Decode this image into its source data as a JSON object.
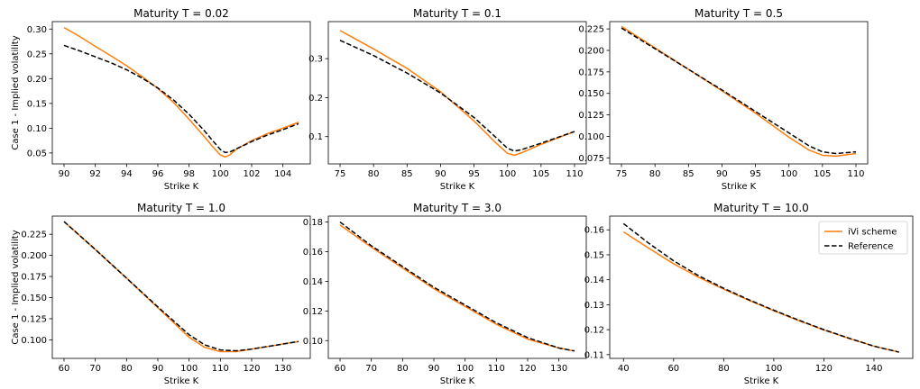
{
  "colors": {
    "ivi": "#ff7f0e",
    "reference": "#000000",
    "axis": "#000000",
    "background": "#ffffff"
  },
  "chart_data": [
    {
      "type": "line",
      "title": "Maturity  T = 0.02",
      "xlabel": "Strike K",
      "ylabel": "Case 1 - Implied volatility",
      "xlim": [
        89.25,
        105.75
      ],
      "ylim": [
        0.028,
        0.315
      ],
      "xticks": [
        90,
        92,
        94,
        96,
        98,
        100,
        102,
        104
      ],
      "yticks": [
        0.05,
        0.1,
        0.15,
        0.2,
        0.25,
        0.3
      ],
      "ytick_labels": [
        "0.05",
        "0.10",
        "0.15",
        "0.20",
        "0.25",
        "0.30"
      ],
      "series": [
        {
          "name": "iVi scheme",
          "style": "solid",
          "x": [
            90,
            91,
            92,
            93,
            94,
            95,
            96,
            97,
            98,
            99,
            99.5,
            100,
            100.3,
            100.6,
            101,
            102,
            103,
            104,
            105
          ],
          "y": [
            0.303,
            0.285,
            0.265,
            0.246,
            0.226,
            0.204,
            0.18,
            0.152,
            0.118,
            0.082,
            0.063,
            0.046,
            0.042,
            0.046,
            0.057,
            0.075,
            0.089,
            0.1,
            0.112
          ]
        },
        {
          "name": "Reference",
          "style": "dashed",
          "x": [
            90,
            91,
            92,
            93,
            94,
            95,
            96,
            97,
            98,
            99,
            99.5,
            100,
            100.3,
            100.6,
            101,
            102,
            103,
            104,
            105
          ],
          "y": [
            0.267,
            0.256,
            0.244,
            0.232,
            0.218,
            0.201,
            0.181,
            0.157,
            0.128,
            0.094,
            0.075,
            0.057,
            0.051,
            0.052,
            0.058,
            0.073,
            0.086,
            0.097,
            0.109
          ]
        }
      ]
    },
    {
      "type": "line",
      "title": "Maturity  T = 0.1",
      "xlabel": "Strike K",
      "ylabel": "",
      "xlim": [
        73.25,
        111.75
      ],
      "ylim": [
        0.03,
        0.395
      ],
      "xticks": [
        75,
        80,
        85,
        90,
        95,
        100,
        105,
        110
      ],
      "yticks": [
        0.1,
        0.2,
        0.3
      ],
      "ytick_labels": [
        "0.1",
        "0.2",
        "0.3"
      ],
      "series": [
        {
          "name": "iVi scheme",
          "style": "solid",
          "x": [
            75,
            80,
            85,
            90,
            95,
            98,
            100,
            101,
            102,
            105,
            110
          ],
          "y": [
            0.372,
            0.325,
            0.275,
            0.215,
            0.14,
            0.088,
            0.057,
            0.052,
            0.058,
            0.08,
            0.113
          ]
        },
        {
          "name": "Reference",
          "style": "dashed",
          "x": [
            75,
            80,
            85,
            90,
            95,
            98,
            100,
            101,
            102,
            105,
            110
          ],
          "y": [
            0.347,
            0.308,
            0.263,
            0.212,
            0.149,
            0.102,
            0.07,
            0.063,
            0.066,
            0.083,
            0.113
          ]
        }
      ]
    },
    {
      "type": "line",
      "title": "Maturity  T = 0.5",
      "xlabel": "Strike K",
      "ylabel": "",
      "xlim": [
        73.25,
        111.75
      ],
      "ylim": [
        0.068,
        0.2335
      ],
      "xticks": [
        75,
        80,
        85,
        90,
        95,
        100,
        105,
        110
      ],
      "yticks": [
        0.075,
        0.1,
        0.125,
        0.15,
        0.175,
        0.2,
        0.225
      ],
      "ytick_labels": [
        "0.075",
        "0.100",
        "0.125",
        "0.150",
        "0.175",
        "0.200",
        "0.225"
      ],
      "series": [
        {
          "name": "iVi scheme",
          "style": "solid",
          "x": [
            75,
            80,
            85,
            90,
            95,
            100,
            103,
            105,
            107,
            110
          ],
          "y": [
            0.228,
            0.203,
            0.178,
            0.153,
            0.127,
            0.099,
            0.084,
            0.078,
            0.077,
            0.08
          ]
        },
        {
          "name": "Reference",
          "style": "dashed",
          "x": [
            75,
            80,
            85,
            90,
            95,
            100,
            103,
            105,
            107,
            110
          ],
          "y": [
            0.226,
            0.202,
            0.178,
            0.154,
            0.129,
            0.104,
            0.089,
            0.082,
            0.08,
            0.082
          ]
        }
      ]
    },
    {
      "type": "line",
      "title": "Maturity  T = 1.0",
      "xlabel": "Strike K",
      "ylabel": "Case 1 - Implied volatility",
      "xlim": [
        56.25,
        138.75
      ],
      "ylim": [
        0.078,
        0.2465
      ],
      "xticks": [
        60,
        70,
        80,
        90,
        100,
        110,
        120,
        130
      ],
      "yticks": [
        0.1,
        0.125,
        0.15,
        0.175,
        0.2,
        0.225
      ],
      "ytick_labels": [
        "0.100",
        "0.125",
        "0.150",
        "0.175",
        "0.200",
        "0.225"
      ],
      "series": [
        {
          "name": "iVi scheme",
          "style": "solid",
          "x": [
            60,
            70,
            80,
            90,
            100,
            105,
            110,
            115,
            120,
            125,
            130,
            135
          ],
          "y": [
            0.24,
            0.207,
            0.173,
            0.138,
            0.103,
            0.091,
            0.086,
            0.086,
            0.089,
            0.092,
            0.095,
            0.098
          ]
        },
        {
          "name": "Reference",
          "style": "dashed",
          "x": [
            60,
            70,
            80,
            90,
            100,
            105,
            110,
            115,
            120,
            125,
            130,
            135
          ],
          "y": [
            0.24,
            0.207,
            0.173,
            0.139,
            0.106,
            0.094,
            0.088,
            0.087,
            0.089,
            0.092,
            0.095,
            0.098
          ]
        }
      ]
    },
    {
      "type": "line",
      "title": "Maturity  T = 3.0",
      "xlabel": "Strike K",
      "ylabel": "",
      "xlim": [
        56.25,
        138.75
      ],
      "ylim": [
        0.088,
        0.184
      ],
      "xticks": [
        60,
        70,
        80,
        90,
        100,
        110,
        120,
        130
      ],
      "yticks": [
        0.1,
        0.12,
        0.14,
        0.16,
        0.18
      ],
      "ytick_labels": [
        "0.10",
        "0.12",
        "0.14",
        "0.16",
        "0.18"
      ],
      "series": [
        {
          "name": "iVi scheme",
          "style": "solid",
          "x": [
            60,
            70,
            80,
            90,
            100,
            110,
            120,
            130,
            135
          ],
          "y": [
            0.178,
            0.163,
            0.149,
            0.135,
            0.123,
            0.111,
            0.101,
            0.095,
            0.093
          ]
        },
        {
          "name": "Reference",
          "style": "dashed",
          "x": [
            60,
            70,
            80,
            90,
            100,
            110,
            120,
            130,
            135
          ],
          "y": [
            0.18,
            0.164,
            0.15,
            0.136,
            0.124,
            0.112,
            0.102,
            0.095,
            0.093
          ]
        }
      ]
    },
    {
      "type": "line",
      "title": "Maturity  T = 10.0",
      "xlabel": "Strike K",
      "ylabel": "",
      "xlim": [
        34.5,
        155.5
      ],
      "ylim": [
        0.1085,
        0.1655
      ],
      "xticks": [
        40,
        60,
        80,
        100,
        120,
        140
      ],
      "yticks": [
        0.11,
        0.12,
        0.13,
        0.14,
        0.15,
        0.16
      ],
      "ytick_labels": [
        "0.11",
        "0.12",
        "0.13",
        "0.14",
        "0.15",
        "0.16"
      ],
      "legend": {
        "position": "top-right",
        "entries": [
          "iVi scheme",
          "Reference"
        ]
      },
      "series": [
        {
          "name": "iVi scheme",
          "style": "solid",
          "x": [
            40,
            50,
            60,
            70,
            80,
            90,
            100,
            110,
            120,
            130,
            140,
            150
          ],
          "y": [
            0.1592,
            0.1527,
            0.1464,
            0.141,
            0.1362,
            0.1318,
            0.1276,
            0.1236,
            0.1199,
            0.1165,
            0.1134,
            0.111
          ]
        },
        {
          "name": "Reference",
          "style": "dashed",
          "x": [
            40,
            50,
            60,
            70,
            80,
            90,
            100,
            110,
            120,
            130,
            140,
            150
          ],
          "y": [
            0.1625,
            0.1547,
            0.1476,
            0.1416,
            0.1366,
            0.132,
            0.1278,
            0.1238,
            0.12,
            0.1166,
            0.1134,
            0.111
          ]
        }
      ]
    }
  ]
}
